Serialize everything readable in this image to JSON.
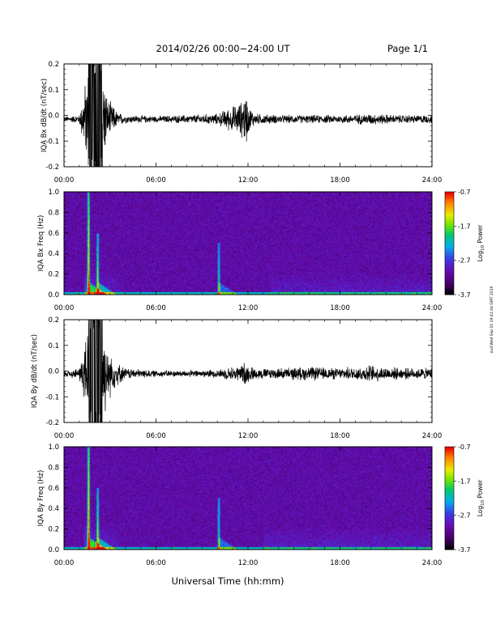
{
  "header": {
    "title": "2014/02/26  00:00−24:00 UT",
    "page": "Page 1/1"
  },
  "footer": {
    "xlabel": "Universal Time (hh:mm)",
    "side_stamp": "ovd Wed Sep 10 19:41:44 GMT 2019"
  },
  "chart_data": [
    {
      "type": "line",
      "ylabel": "IQA Bx dB/dt (nT/sec)",
      "xlim": [
        0,
        24
      ],
      "ylim": [
        -0.2,
        0.2
      ],
      "xticks": [
        "00:00",
        "06:00",
        "12:00",
        "18:00",
        "24:00"
      ],
      "yticks": [
        "-0.2",
        "-0.1",
        "0.0",
        "0.1",
        "0.2"
      ],
      "series": [
        {
          "color": "#000000",
          "x": [
            0,
            1,
            1.6,
            1.8,
            2.0,
            2.5,
            2.8,
            3.5,
            4,
            6,
            8,
            10,
            10.5,
            11.5,
            11.9,
            12,
            12.5,
            14,
            16,
            18,
            20,
            22,
            24
          ],
          "amplitude": [
            0.01,
            0.015,
            0.2,
            0.2,
            0.2,
            0.2,
            0.08,
            0.025,
            0.015,
            0.012,
            0.015,
            0.02,
            0.035,
            0.06,
            0.1,
            0.05,
            0.02,
            0.015,
            0.015,
            0.015,
            0.02,
            0.015,
            0.015
          ],
          "baseline": -0.015
        }
      ]
    },
    {
      "type": "heatmap",
      "ylabel": "IQA Bx Freq (Hz)",
      "xlim": [
        0,
        24
      ],
      "ylim": [
        0,
        1.0
      ],
      "xticks": [
        "00:00",
        "06:00",
        "12:00",
        "18:00",
        "24:00"
      ],
      "yticks": [
        "0.0",
        "0.2",
        "0.4",
        "0.6",
        "0.8",
        "1.0"
      ],
      "colorbar": {
        "label": "Log10 Power",
        "label_main": "Log",
        "label_sub": "10",
        "label_tail": " Power",
        "range": [
          -3.7,
          -0.7
        ],
        "ticks": [
          "-0.7",
          "-1.7",
          "-2.7",
          "-3.7"
        ]
      },
      "events": [
        {
          "t": 1.6,
          "max_freq": 1.0,
          "strength": 0.8
        },
        {
          "t": 2.2,
          "max_freq": 0.6,
          "strength": 0.6
        },
        {
          "t": 10.1,
          "max_freq": 0.5,
          "strength": 0.5
        }
      ],
      "afternoon_band": {
        "t_start": 13.5,
        "t_end": 24,
        "max_freq": 0.2
      }
    },
    {
      "type": "line",
      "ylabel": "IQA By dB/dt (nT/sec)",
      "xlim": [
        0,
        24
      ],
      "ylim": [
        -0.2,
        0.2
      ],
      "xticks": [
        "00:00",
        "06:00",
        "12:00",
        "18:00",
        "24:00"
      ],
      "yticks": [
        "-0.2",
        "-0.1",
        "0.0",
        "0.1",
        "0.2"
      ],
      "series": [
        {
          "color": "#000000",
          "x": [
            0,
            1,
            1.6,
            1.8,
            2.0,
            2.5,
            2.8,
            3.5,
            4,
            6,
            8,
            10,
            10.5,
            11.5,
            11.9,
            12,
            12.5,
            14,
            16,
            18,
            20,
            22,
            24
          ],
          "amplitude": [
            0.012,
            0.02,
            0.2,
            0.2,
            0.2,
            0.2,
            0.1,
            0.04,
            0.02,
            0.012,
            0.012,
            0.015,
            0.02,
            0.03,
            0.05,
            0.03,
            0.02,
            0.02,
            0.025,
            0.02,
            0.03,
            0.02,
            0.02
          ],
          "baseline": -0.01
        }
      ]
    },
    {
      "type": "heatmap",
      "ylabel": "IQA By Freq (Hz)",
      "xlim": [
        0,
        24
      ],
      "ylim": [
        0,
        1.0
      ],
      "xticks": [
        "00:00",
        "06:00",
        "12:00",
        "18:00",
        "24:00"
      ],
      "yticks": [
        "0.0",
        "0.2",
        "0.4",
        "0.6",
        "0.8",
        "1.0"
      ],
      "colorbar": {
        "label": "Log10 Power",
        "label_main": "Log",
        "label_sub": "10",
        "label_tail": " Power",
        "range": [
          -3.7,
          -0.7
        ],
        "ticks": [
          "-0.7",
          "-1.7",
          "-2.7",
          "-3.7"
        ]
      },
      "events": [
        {
          "t": 1.6,
          "max_freq": 1.0,
          "strength": 0.85
        },
        {
          "t": 2.2,
          "max_freq": 0.6,
          "strength": 0.6
        },
        {
          "t": 10.1,
          "max_freq": 0.5,
          "strength": 0.5
        }
      ],
      "afternoon_band": {
        "t_start": 13.0,
        "t_end": 24,
        "max_freq": 0.22
      }
    }
  ]
}
